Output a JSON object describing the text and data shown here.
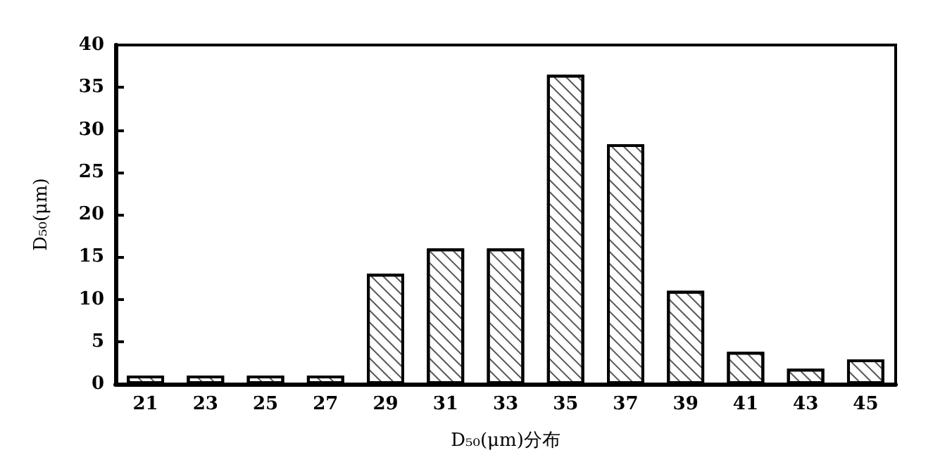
{
  "chart_data": {
    "type": "bar",
    "xlabel": "D₅₀(μm)分布",
    "ylabel": "D₅₀(μm)",
    "categories": [
      "21",
      "23",
      "25",
      "27",
      "29",
      "31",
      "33",
      "35",
      "37",
      "39",
      "41",
      "43",
      "45"
    ],
    "values": [
      1,
      1,
      1,
      1,
      13,
      16,
      16,
      36.5,
      28.3,
      11,
      3.8,
      1.8,
      2.9
    ],
    "color": "#ffffff",
    "ylim": [
      0,
      40
    ],
    "yticks": [
      0,
      5,
      10,
      15,
      20,
      25,
      30,
      35,
      40
    ],
    "grid": false
  }
}
